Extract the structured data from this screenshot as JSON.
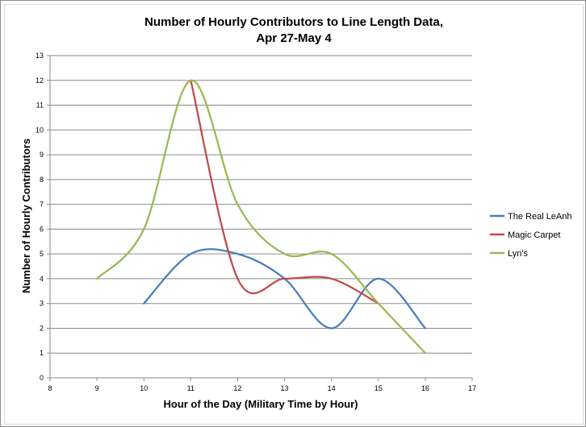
{
  "chart_data": {
    "type": "line",
    "title_lines": [
      "Number of Hourly Contributors to Line Length Data,",
      "Apr 27-May 4"
    ],
    "xlabel": "Hour of the Day (Military Time by Hour)",
    "ylabel": "Number of Hourly Contributors",
    "xlim": [
      8,
      17
    ],
    "ylim": [
      0,
      13
    ],
    "x_ticks": [
      8,
      9,
      10,
      11,
      12,
      13,
      14,
      15,
      16,
      17
    ],
    "y_ticks": [
      0,
      1,
      2,
      3,
      4,
      5,
      6,
      7,
      8,
      9,
      10,
      11,
      12,
      13
    ],
    "grid": "horizontal",
    "legend_position": "right",
    "smoothed": true,
    "series": [
      {
        "name": "The Real LeAnh",
        "color": "#4a7ebb",
        "x": [
          10,
          11,
          12,
          13,
          14,
          15,
          16
        ],
        "y": [
          3,
          5,
          5,
          4,
          2,
          4,
          2
        ]
      },
      {
        "name": "Magic Carpet",
        "color": "#be4b48",
        "x": [
          11,
          12,
          13,
          14,
          15
        ],
        "y": [
          12,
          4,
          4,
          4,
          3
        ]
      },
      {
        "name": "Lyn's",
        "color": "#98b954",
        "x": [
          9,
          10,
          11,
          12,
          13,
          14,
          15,
          16
        ],
        "y": [
          4,
          6,
          12,
          7,
          5,
          5,
          3,
          1
        ]
      }
    ]
  }
}
